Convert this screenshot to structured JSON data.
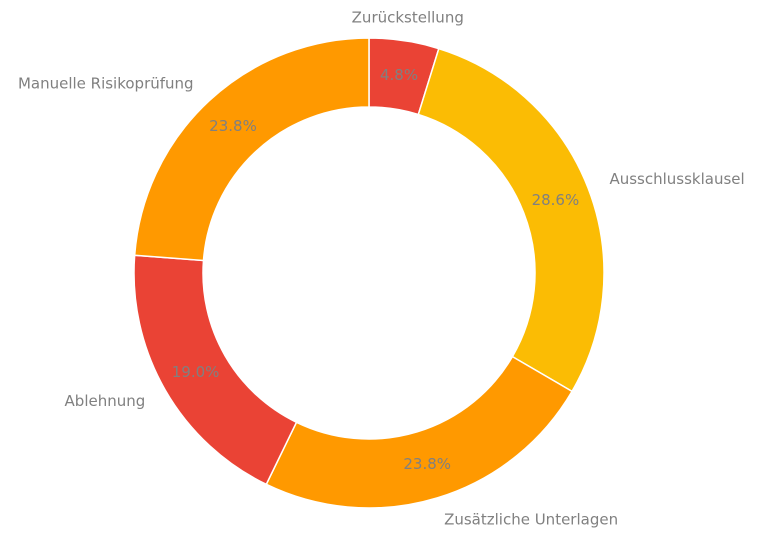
{
  "chart_data": {
    "type": "pie",
    "donut": true,
    "start_angle_deg": 90,
    "direction": "clockwise",
    "categories": [
      "Zurückstellung",
      "Ausschlussklausel",
      "Zusätzliche Unterlagen",
      "Ablehnung",
      "Manuelle Risikoprüfung"
    ],
    "values": [
      4.8,
      28.6,
      23.8,
      19.0,
      23.8
    ],
    "percent_labels": [
      "4.8%",
      "28.6%",
      "23.8%",
      "19.0%",
      "23.8%"
    ],
    "colors": [
      "#ea4335",
      "#fbbc04",
      "#ff9900",
      "#ea4335",
      "#ff9900"
    ],
    "legend": "none"
  }
}
